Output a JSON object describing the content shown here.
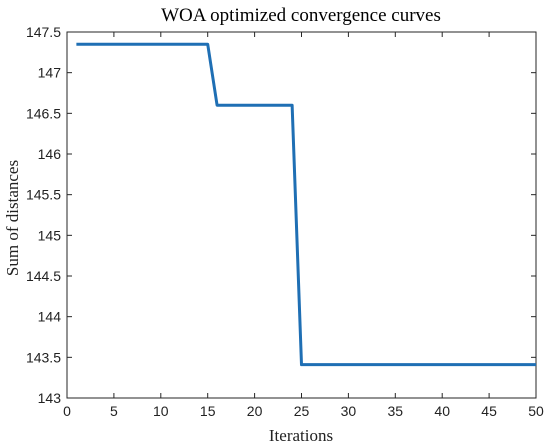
{
  "chart_data": {
    "type": "line",
    "title": "WOA optimized convergence curves",
    "xlabel": "Iterations",
    "ylabel": "Sum of distances",
    "xlim": [
      0,
      50
    ],
    "ylim": [
      143,
      147.5
    ],
    "xticks": [
      0,
      5,
      10,
      15,
      20,
      25,
      30,
      35,
      40,
      45,
      50
    ],
    "yticks": [
      143,
      143.5,
      144,
      144.5,
      145,
      145.5,
      146,
      146.5,
      147,
      147.5
    ],
    "xtick_labels": [
      "0",
      "5",
      "10",
      "15",
      "20",
      "25",
      "30",
      "35",
      "40",
      "45",
      "50"
    ],
    "ytick_labels": [
      "143",
      "143.5",
      "144",
      "144.5",
      "145",
      "145.5",
      "146",
      "146.5",
      "147",
      "147.5"
    ],
    "grid": false,
    "series": [
      {
        "color": "#1f6fb4",
        "x": [
          1,
          15,
          16,
          24,
          25,
          50
        ],
        "y": [
          147.35,
          147.35,
          146.6,
          146.6,
          143.41,
          143.41
        ]
      }
    ]
  }
}
